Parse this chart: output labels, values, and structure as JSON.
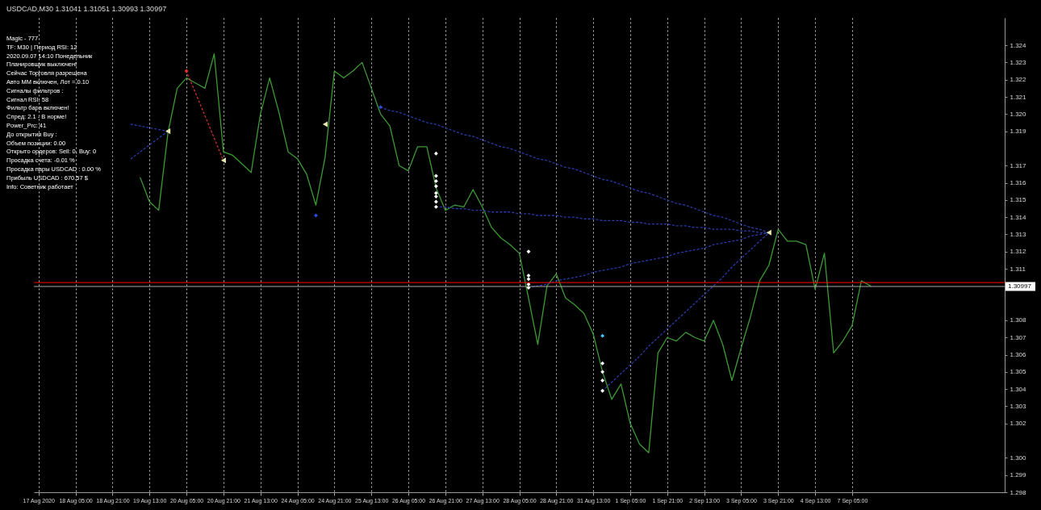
{
  "chart_data": {
    "type": "line",
    "title": "USDCAD,M30  1.31041 1.31051 1.30993 1.30997",
    "categories": [
      "17 Aug 2020",
      null,
      null,
      null,
      "18 Aug 05:00",
      null,
      null,
      null,
      "18 Aug 21:00",
      null,
      null,
      null,
      "19 Aug 13:00",
      null,
      null,
      null,
      "20 Aug 05:00",
      null,
      null,
      null,
      "20 Aug 21:00",
      null,
      null,
      null,
      "21 Aug 13:00",
      null,
      null,
      null,
      "24 Aug 05:00",
      null,
      null,
      null,
      "24 Aug 21:00",
      null,
      null,
      null,
      "25 Aug 13:00",
      null,
      null,
      null,
      "26 Aug 05:00",
      null,
      null,
      null,
      "26 Aug 21:00",
      null,
      null,
      null,
      "27 Aug 13:00",
      null,
      null,
      null,
      "28 Aug 05:00",
      null,
      null,
      null,
      "28 Aug 21:00",
      null,
      null,
      null,
      "31 Aug 13:00",
      null,
      null,
      null,
      "1 Sep 05:00",
      null,
      null,
      null,
      "1 Sep 21:00",
      null,
      null,
      null,
      "2 Sep 13:00",
      null,
      null,
      null,
      "3 Sep 05:00",
      null,
      null,
      null,
      "3 Sep 21:00",
      null,
      null,
      null,
      "4 Sep 13:00",
      null,
      null,
      null,
      "7 Sep 05:00",
      null,
      null,
      null,
      null,
      null,
      null,
      null,
      null,
      null,
      null,
      null,
      null,
      null,
      null,
      null,
      null
    ],
    "series": [
      {
        "color": "#3c9a34",
        "values": [
          null,
          null,
          null,
          null,
          null,
          null,
          null,
          null,
          null,
          null,
          null,
          1.3163,
          1.3149,
          1.3144,
          1.3189,
          1.3215,
          1.3221,
          1.3218,
          1.3215,
          1.3235,
          1.3178,
          1.3176,
          1.3171,
          1.3166,
          1.32,
          1.3221,
          1.3201,
          1.3178,
          1.3174,
          1.3165,
          1.3147,
          1.3175,
          1.3225,
          1.3221,
          1.3225,
          1.323,
          1.3215,
          1.32,
          1.3193,
          1.317,
          1.3167,
          1.3181,
          1.3181,
          1.3157,
          1.3144,
          1.3147,
          1.3146,
          1.3156,
          1.3146,
          1.3134,
          1.3128,
          1.3124,
          1.3119,
          1.3093,
          1.3066,
          1.31,
          1.3107,
          1.3093,
          1.3089,
          1.3084,
          1.3072,
          1.305,
          1.3034,
          1.3043,
          1.302,
          1.3008,
          1.3003,
          1.3061,
          1.307,
          1.3068,
          1.3073,
          1.307,
          1.3068,
          1.308,
          1.3066,
          1.3045,
          1.3064,
          1.3082,
          1.3103,
          1.3112,
          1.3133,
          1.3126,
          1.3126,
          1.3124,
          1.3098,
          1.3119,
          1.3061,
          1.3068,
          1.3077,
          1.3103,
          1.31,
          null,
          null,
          null,
          null,
          null,
          null,
          null,
          null,
          null,
          null,
          null,
          null,
          null,
          null
        ]
      },
      {
        "type": "line",
        "color": "#2a3aa8",
        "line_style": "dotted",
        "values": [
          null,
          null,
          null,
          null,
          null,
          null,
          null,
          null,
          null,
          null,
          1.3194,
          1.3193,
          1.3192,
          1.3191,
          1.319,
          null,
          null,
          null,
          null,
          null,
          null,
          null,
          null,
          null,
          null,
          null,
          null,
          null,
          null,
          null,
          null,
          null,
          null,
          null,
          null,
          null,
          null,
          null,
          null,
          null,
          null,
          null,
          null,
          null,
          null,
          null,
          null,
          null,
          null,
          null,
          null,
          null,
          null,
          null,
          null,
          null,
          null,
          null,
          null,
          null,
          null,
          null,
          null,
          null,
          null,
          null,
          null,
          null,
          null,
          null,
          null,
          null,
          null,
          null,
          null,
          null,
          null,
          null,
          null,
          null,
          null,
          null,
          null,
          null,
          null,
          null,
          null,
          null,
          null,
          null,
          null,
          null,
          null,
          null,
          null,
          null,
          null,
          null,
          null,
          null,
          null,
          null,
          null,
          null,
          null
        ]
      },
      {
        "type": "line",
        "color": "#2a3aa8",
        "line_style": "dotted",
        "values": [
          null,
          null,
          null,
          null,
          null,
          null,
          null,
          null,
          null,
          null,
          1.3174,
          1.3178,
          1.3182,
          1.3186,
          1.319,
          null,
          null,
          null,
          null,
          null,
          null,
          null,
          null,
          null,
          null,
          null,
          null,
          null,
          null,
          null,
          null,
          null,
          null,
          null,
          null,
          null,
          null,
          null,
          null,
          null,
          null,
          null,
          null,
          null,
          null,
          null,
          null,
          null,
          null,
          null,
          null,
          null,
          null,
          null,
          null,
          null,
          null,
          null,
          null,
          null,
          null,
          null,
          null,
          null,
          null,
          null,
          null,
          null,
          null,
          null,
          null,
          null,
          null,
          null,
          null,
          null,
          null,
          null,
          null,
          null,
          null,
          null,
          null,
          null,
          null,
          null,
          null,
          null,
          null,
          null,
          null,
          null,
          null,
          null,
          null,
          null,
          null,
          null,
          null,
          null,
          null,
          null,
          null,
          null,
          null
        ]
      },
      {
        "type": "line",
        "color": "#c83030",
        "line_style": "dotted",
        "values": [
          null,
          null,
          null,
          null,
          null,
          null,
          null,
          null,
          null,
          null,
          null,
          null,
          null,
          null,
          null,
          null,
          1.3225,
          1.3212,
          1.3199,
          1.3186,
          1.3173,
          null,
          null,
          null,
          null,
          null,
          null,
          null,
          null,
          null,
          null,
          null,
          null,
          null,
          null,
          null,
          null,
          null,
          null,
          null,
          null,
          null,
          null,
          null,
          null,
          null,
          null,
          null,
          null,
          null,
          null,
          null,
          null,
          null,
          null,
          null,
          null,
          null,
          null,
          null,
          null,
          null,
          null,
          null,
          null,
          null,
          null,
          null,
          null,
          null,
          null,
          null,
          null,
          null,
          null,
          null,
          null,
          null,
          null,
          null,
          null,
          null,
          null,
          null,
          null,
          null,
          null,
          null,
          null,
          null,
          null,
          null,
          null,
          null,
          null,
          null,
          null,
          null,
          null,
          null,
          null,
          null,
          null,
          null,
          null
        ]
      },
      {
        "type": "line",
        "color": "#2a3aa8",
        "line_style": "dotted",
        "values": [
          null,
          null,
          null,
          null,
          null,
          null,
          null,
          null,
          null,
          null,
          null,
          null,
          null,
          null,
          null,
          null,
          null,
          null,
          null,
          null,
          null,
          null,
          null,
          null,
          null,
          null,
          null,
          null,
          null,
          null,
          null,
          null,
          null,
          null,
          null,
          null,
          null,
          1.3204,
          1.3202,
          1.3201,
          1.3199,
          1.3197,
          1.3195,
          1.3194,
          1.3192,
          1.319,
          1.3188,
          1.3187,
          1.3185,
          1.3183,
          1.3181,
          1.318,
          1.3178,
          1.3176,
          1.3174,
          1.3173,
          1.3171,
          1.3169,
          1.3168,
          1.3166,
          1.3164,
          1.3162,
          1.3161,
          1.3159,
          1.3157,
          1.3155,
          1.3154,
          1.3152,
          1.315,
          1.3148,
          1.3147,
          1.3145,
          1.3143,
          1.3141,
          1.314,
          1.3138,
          1.3136,
          1.3134,
          1.3133,
          1.3131,
          null,
          null,
          null,
          null,
          null,
          null,
          null,
          null,
          null,
          null,
          null,
          null,
          null,
          null,
          null,
          null,
          null,
          null,
          null,
          null,
          null,
          null,
          null,
          null,
          null
        ]
      },
      {
        "type": "line",
        "color": "#2a3aa8",
        "line_style": "dotted",
        "values": [
          null,
          null,
          null,
          null,
          null,
          null,
          null,
          null,
          null,
          null,
          null,
          null,
          null,
          null,
          null,
          null,
          null,
          null,
          null,
          null,
          null,
          null,
          null,
          null,
          null,
          null,
          null,
          null,
          null,
          null,
          null,
          null,
          null,
          null,
          null,
          null,
          null,
          null,
          null,
          null,
          null,
          null,
          null,
          1.3146,
          1.3146,
          1.3145,
          1.3145,
          1.3144,
          1.3144,
          1.3143,
          1.3143,
          1.3143,
          1.3142,
          1.3142,
          1.3141,
          1.3141,
          1.3141,
          1.314,
          1.314,
          1.3139,
          1.3139,
          1.3138,
          1.3138,
          1.3138,
          1.3137,
          1.3137,
          1.3136,
          1.3136,
          1.3136,
          1.3135,
          1.3135,
          1.3134,
          1.3134,
          1.3133,
          1.3133,
          1.3133,
          1.3132,
          1.3132,
          1.3131,
          1.3131,
          null,
          null,
          null,
          null,
          null,
          null,
          null,
          null,
          null,
          null,
          null,
          null,
          null,
          null,
          null,
          null,
          null,
          null,
          null,
          null,
          null,
          null,
          null,
          null,
          null
        ]
      },
      {
        "type": "line",
        "color": "#2a3aa8",
        "line_style": "dotted",
        "values": [
          null,
          null,
          null,
          null,
          null,
          null,
          null,
          null,
          null,
          null,
          null,
          null,
          null,
          null,
          null,
          null,
          null,
          null,
          null,
          null,
          null,
          null,
          null,
          null,
          null,
          null,
          null,
          null,
          null,
          null,
          null,
          null,
          null,
          null,
          null,
          null,
          null,
          null,
          null,
          null,
          null,
          null,
          null,
          null,
          null,
          null,
          null,
          null,
          null,
          null,
          null,
          null,
          null,
          1.3099,
          1.31,
          1.3101,
          1.3103,
          1.3104,
          1.3105,
          1.3106,
          1.3108,
          1.3109,
          1.311,
          1.3111,
          1.3113,
          1.3114,
          1.3115,
          1.3116,
          1.3117,
          1.3119,
          1.312,
          1.3121,
          1.3122,
          1.3124,
          1.3125,
          1.3126,
          1.3127,
          1.3129,
          1.313,
          1.3131,
          null,
          null,
          null,
          null,
          null,
          null,
          null,
          null,
          null,
          null,
          null,
          null,
          null,
          null,
          null,
          null,
          null,
          null,
          null,
          null,
          null,
          null,
          null,
          null,
          null
        ]
      },
      {
        "type": "line",
        "color": "#2a3aa8",
        "line_style": "dotted",
        "values": [
          null,
          null,
          null,
          null,
          null,
          null,
          null,
          null,
          null,
          null,
          null,
          null,
          null,
          null,
          null,
          null,
          null,
          null,
          null,
          null,
          null,
          null,
          null,
          null,
          null,
          null,
          null,
          null,
          null,
          null,
          null,
          null,
          null,
          null,
          null,
          null,
          null,
          null,
          null,
          null,
          null,
          null,
          null,
          null,
          null,
          null,
          null,
          null,
          null,
          null,
          null,
          null,
          null,
          null,
          null,
          null,
          null,
          null,
          null,
          null,
          null,
          1.3039,
          1.3044,
          1.3049,
          1.3054,
          1.3059,
          1.3065,
          1.307,
          1.3075,
          1.308,
          1.3085,
          1.309,
          1.3095,
          1.31,
          1.3105,
          1.3111,
          1.3116,
          1.3121,
          1.3126,
          1.3131,
          null,
          null,
          null,
          null,
          null,
          null,
          null,
          null,
          null,
          null,
          null,
          null,
          null,
          null,
          null,
          null,
          null,
          null,
          null,
          null,
          null,
          null,
          null,
          null,
          null
        ]
      },
      {
        "type": "scatter",
        "marker": "triangle",
        "color": "#e8e8b0",
        "values": [
          null,
          null,
          null,
          null,
          null,
          null,
          null,
          null,
          null,
          null,
          null,
          null,
          null,
          null,
          1.319,
          null,
          null,
          null,
          null,
          null,
          1.3173,
          null,
          null,
          null,
          null,
          null,
          null,
          null,
          null,
          null,
          null,
          1.3194,
          null,
          null,
          null,
          null,
          null,
          null,
          null,
          null,
          null,
          null,
          null,
          null,
          null,
          null,
          null,
          null,
          null,
          null,
          null,
          null,
          null,
          null,
          null,
          null,
          null,
          null,
          null,
          null,
          null,
          null,
          null,
          null,
          null,
          null,
          null,
          null,
          null,
          null,
          null,
          null,
          null,
          null,
          null,
          null,
          null,
          null,
          null,
          1.3131,
          null,
          null,
          null,
          null,
          null,
          null,
          null,
          null,
          null,
          null,
          null,
          null,
          null,
          null,
          null,
          null,
          null,
          null,
          null,
          null,
          null,
          null,
          null,
          null,
          null
        ]
      },
      {
        "type": "scatter",
        "marker": "diamond",
        "values": [
          null,
          null,
          null,
          null,
          null,
          null,
          null,
          null,
          null,
          null,
          null,
          null,
          null,
          null,
          null,
          null,
          1.3225,
          null,
          null,
          null,
          null,
          null,
          null,
          null,
          null,
          null,
          null,
          null,
          null,
          null,
          1.3141,
          null,
          null,
          null,
          null,
          null,
          null,
          1.3204,
          null,
          null,
          null,
          null,
          null,
          1.3177,
          null,
          null,
          null,
          null,
          null,
          null,
          null,
          null,
          null,
          1.312,
          null,
          null,
          null,
          null,
          null,
          null,
          null,
          1.3071,
          null,
          null,
          null,
          null,
          null,
          null,
          null,
          null,
          null,
          null,
          null,
          null,
          null,
          null,
          null,
          null,
          null,
          null,
          null,
          null,
          null,
          null,
          null,
          null,
          null,
          null,
          null,
          null,
          null,
          null,
          null,
          null,
          null,
          null,
          null,
          null,
          null,
          null,
          null,
          null,
          null,
          null,
          null
        ],
        "colors": [
          null,
          null,
          null,
          null,
          null,
          null,
          null,
          null,
          null,
          null,
          null,
          null,
          null,
          null,
          null,
          null,
          "#e83030",
          null,
          null,
          null,
          null,
          null,
          null,
          null,
          null,
          null,
          null,
          null,
          null,
          null,
          "#2a4ae0",
          null,
          null,
          null,
          null,
          null,
          null,
          "#2a4ae0",
          null,
          null,
          null,
          null,
          null,
          "#ffffff",
          null,
          null,
          null,
          null,
          null,
          null,
          null,
          null,
          null,
          "#ffffff",
          null,
          null,
          null,
          null,
          null,
          null,
          null,
          "#40c8ff",
          null,
          null,
          null,
          null,
          null,
          null,
          null,
          null,
          null,
          null,
          null,
          null,
          null,
          null,
          null,
          null,
          null,
          null,
          null,
          null,
          null,
          null,
          null,
          null,
          null,
          null,
          null,
          null,
          null,
          null,
          null,
          null,
          null,
          null,
          null,
          null,
          null,
          null,
          null,
          null,
          null,
          null,
          null
        ]
      },
      {
        "type": "scatter",
        "marker": "diamond",
        "color": "#ffffff",
        "values": [
          null,
          null,
          null,
          null,
          null,
          null,
          null,
          null,
          null,
          null,
          null,
          null,
          null,
          null,
          null,
          null,
          null,
          null,
          null,
          null,
          null,
          null,
          null,
          null,
          null,
          null,
          null,
          null,
          null,
          null,
          null,
          null,
          null,
          null,
          null,
          null,
          null,
          null,
          null,
          null,
          null,
          null,
          null,
          1.3164,
          null,
          null,
          null,
          null,
          null,
          null,
          null,
          null,
          null,
          1.3106,
          null,
          null,
          null,
          null,
          null,
          null,
          null,
          1.3055,
          null,
          null,
          null,
          null,
          null,
          null,
          null,
          null,
          null,
          null,
          null,
          null,
          null,
          null,
          null,
          null,
          null,
          null,
          null,
          null,
          null,
          null,
          null,
          null,
          null,
          null,
          null,
          null,
          null,
          null,
          null,
          null,
          null,
          null,
          null,
          null,
          null,
          null,
          null,
          null,
          null,
          null,
          null
        ]
      },
      {
        "type": "scatter",
        "marker": "diamond",
        "color": "#ffffff",
        "values": [
          null,
          null,
          null,
          null,
          null,
          null,
          null,
          null,
          null,
          null,
          null,
          null,
          null,
          null,
          null,
          null,
          null,
          null,
          null,
          null,
          null,
          null,
          null,
          null,
          null,
          null,
          null,
          null,
          null,
          null,
          null,
          null,
          null,
          null,
          null,
          null,
          null,
          null,
          null,
          null,
          null,
          null,
          null,
          1.3161,
          null,
          null,
          null,
          null,
          null,
          null,
          null,
          null,
          null,
          1.3104,
          null,
          null,
          null,
          null,
          null,
          null,
          null,
          1.305,
          null,
          null,
          null,
          null,
          null,
          null,
          null,
          null,
          null,
          null,
          null,
          null,
          null,
          null,
          null,
          null,
          null,
          null,
          null,
          null,
          null,
          null,
          null,
          null,
          null,
          null,
          null,
          null,
          null,
          null,
          null,
          null,
          null,
          null,
          null,
          null,
          null,
          null,
          null,
          null,
          null,
          null,
          null
        ]
      },
      {
        "type": "scatter",
        "marker": "diamond",
        "color": "#ffffff",
        "values": [
          null,
          null,
          null,
          null,
          null,
          null,
          null,
          null,
          null,
          null,
          null,
          null,
          null,
          null,
          null,
          null,
          null,
          null,
          null,
          null,
          null,
          null,
          null,
          null,
          null,
          null,
          null,
          null,
          null,
          null,
          null,
          null,
          null,
          null,
          null,
          null,
          null,
          null,
          null,
          null,
          null,
          null,
          null,
          1.3158,
          null,
          null,
          null,
          null,
          null,
          null,
          null,
          null,
          null,
          1.3101,
          null,
          null,
          null,
          null,
          null,
          null,
          null,
          1.3045,
          null,
          null,
          null,
          null,
          null,
          null,
          null,
          null,
          null,
          null,
          null,
          null,
          null,
          null,
          null,
          null,
          null,
          null,
          null,
          null,
          null,
          null,
          null,
          null,
          null,
          null,
          null,
          null,
          null,
          null,
          null,
          null,
          null,
          null,
          null,
          null,
          null,
          null,
          null,
          null,
          null,
          null,
          null
        ]
      },
      {
        "type": "scatter",
        "marker": "diamond",
        "color": "#ffffff",
        "values": [
          null,
          null,
          null,
          null,
          null,
          null,
          null,
          null,
          null,
          null,
          null,
          null,
          null,
          null,
          null,
          null,
          null,
          null,
          null,
          null,
          null,
          null,
          null,
          null,
          null,
          null,
          null,
          null,
          null,
          null,
          null,
          null,
          null,
          null,
          null,
          null,
          null,
          null,
          null,
          null,
          null,
          null,
          null,
          1.3154,
          null,
          null,
          null,
          null,
          null,
          null,
          null,
          null,
          null,
          1.3099,
          null,
          null,
          null,
          null,
          null,
          null,
          null,
          1.3039,
          null,
          null,
          null,
          null,
          null,
          null,
          null,
          null,
          null,
          null,
          null,
          null,
          null,
          null,
          null,
          null,
          null,
          null,
          null,
          null,
          null,
          null,
          null,
          null,
          null,
          null,
          null,
          null,
          null,
          null,
          null,
          null,
          null,
          null,
          null,
          null,
          null,
          null,
          null,
          null,
          null,
          null,
          null
        ]
      },
      {
        "type": "scatter",
        "marker": "diamond",
        "color": "#ffffff",
        "values": [
          null,
          null,
          null,
          null,
          null,
          null,
          null,
          null,
          null,
          null,
          null,
          null,
          null,
          null,
          null,
          null,
          null,
          null,
          null,
          null,
          null,
          null,
          null,
          null,
          null,
          null,
          null,
          null,
          null,
          null,
          null,
          null,
          null,
          null,
          null,
          null,
          null,
          null,
          null,
          null,
          null,
          null,
          null,
          1.3152,
          null,
          null,
          null,
          null,
          null,
          null,
          null,
          null,
          null,
          null,
          null,
          null,
          null,
          null,
          null,
          null,
          null,
          null,
          null,
          null,
          null,
          null,
          null,
          null,
          null,
          null,
          null,
          null,
          null,
          null,
          null,
          null,
          null,
          null,
          null,
          null,
          null,
          null,
          null,
          null,
          null,
          null,
          null,
          null,
          null,
          null,
          null,
          null,
          null,
          null,
          null,
          null,
          null,
          null,
          null,
          null,
          null,
          null,
          null,
          null,
          null
        ]
      },
      {
        "type": "scatter",
        "marker": "diamond",
        "color": "#ffffff",
        "values": [
          null,
          null,
          null,
          null,
          null,
          null,
          null,
          null,
          null,
          null,
          null,
          null,
          null,
          null,
          null,
          null,
          null,
          null,
          null,
          null,
          null,
          null,
          null,
          null,
          null,
          null,
          null,
          null,
          null,
          null,
          null,
          null,
          null,
          null,
          null,
          null,
          null,
          null,
          null,
          null,
          null,
          null,
          null,
          1.3149,
          null,
          null,
          null,
          null,
          null,
          null,
          null,
          null,
          null,
          null,
          null,
          null,
          null,
          null,
          null,
          null,
          null,
          null,
          null,
          null,
          null,
          null,
          null,
          null,
          null,
          null,
          null,
          null,
          null,
          null,
          null,
          null,
          null,
          null,
          null,
          null,
          null,
          null,
          null,
          null,
          null,
          null,
          null,
          null,
          null,
          null,
          null,
          null,
          null,
          null,
          null,
          null,
          null,
          null,
          null,
          null,
          null,
          null,
          null,
          null,
          null
        ]
      },
      {
        "type": "scatter",
        "marker": "diamond",
        "color": "#ffffff",
        "values": [
          null,
          null,
          null,
          null,
          null,
          null,
          null,
          null,
          null,
          null,
          null,
          null,
          null,
          null,
          null,
          null,
          null,
          null,
          null,
          null,
          null,
          null,
          null,
          null,
          null,
          null,
          null,
          null,
          null,
          null,
          null,
          null,
          null,
          null,
          null,
          null,
          null,
          null,
          null,
          null,
          null,
          null,
          null,
          1.3146,
          null,
          null,
          null,
          null,
          null,
          null,
          null,
          null,
          null,
          null,
          null,
          null,
          null,
          null,
          null,
          null,
          null,
          null,
          null,
          null,
          null,
          null,
          null,
          null,
          null,
          null,
          null,
          null,
          null,
          null,
          null,
          null,
          null,
          null,
          null,
          null,
          null,
          null,
          null,
          null,
          null,
          null,
          null,
          null,
          null,
          null,
          null,
          null,
          null,
          null,
          null,
          null,
          null,
          null,
          null,
          null,
          null,
          null,
          null,
          null,
          null
        ]
      }
    ],
    "ylim": [
      1.298,
      1.3256
    ],
    "yticks": [
      1.324,
      1.323,
      1.322,
      1.321,
      {
        "value": 1.32,
        "label": "1.320"
      },
      1.319,
      1.317,
      1.316,
      1.315,
      1.314,
      1.313,
      1.312,
      1.311,
      1.308,
      1.307,
      1.306,
      1.305,
      1.304,
      1.303,
      1.302,
      {
        "value": 1.3,
        "label": "1.300"
      },
      1.299,
      1.298
    ],
    "grid": "x",
    "ref_lines": [
      {
        "axis": "y",
        "value": 1.3102,
        "color": "#ff0000"
      },
      {
        "axis": "y",
        "value": 1.30997,
        "label": "1.30997",
        "color": "#a8a8a8"
      }
    ],
    "annotations": [
      "Magic - 777",
      "TF: M30  |  Период RSI: 12",
      "2020.09.07 14:10 Понедельник",
      "Планировщик выключен!",
      "Сейчас Торговля разрешена",
      "Авто MM включен,  Лот = 0.10",
      "Сигналы фильтров :",
      "Сигнал RSI: 58",
      "Фильтр бара включен!",
      "Спред: 2.1 - В норме!",
      "Power_Prc: 41",
      "До открытия Buy  :",
      "Объем позиции: 0.00",
      "Открыто ордеров: Sell: 0,   Buy: 0",
      "Просадка счета: -0.01 %",
      "Просадка пары USDCAD : 0.00 %",
      "Прибыль USDCAD : 670.57 $",
      "Info: Советник работает"
    ]
  }
}
